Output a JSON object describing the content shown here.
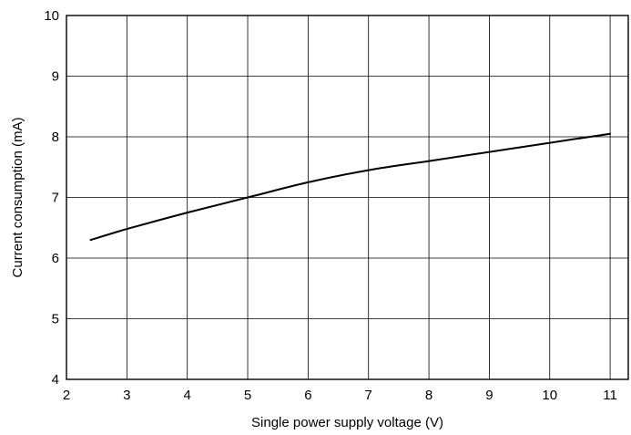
{
  "chart_data": {
    "type": "line",
    "title": "",
    "xlabel": "Single power supply voltage (V)",
    "ylabel": "Current consumption (mA)",
    "xlim": [
      2,
      11.3
    ],
    "ylim": [
      4,
      10
    ],
    "x_ticks": [
      2,
      3,
      4,
      5,
      6,
      7,
      8,
      9,
      10,
      11
    ],
    "y_ticks": [
      4,
      5,
      6,
      7,
      8,
      9,
      10
    ],
    "grid": true,
    "legend": "none",
    "series": [
      {
        "x": [
          2.4,
          3,
          4,
          5,
          6,
          7,
          8,
          9,
          10,
          11
        ],
        "y": [
          6.3,
          6.48,
          6.75,
          7.0,
          7.25,
          7.45,
          7.6,
          7.75,
          7.9,
          8.05
        ]
      }
    ]
  }
}
